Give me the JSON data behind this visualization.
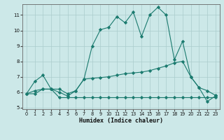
{
  "x": [
    0,
    1,
    2,
    3,
    4,
    5,
    6,
    7,
    8,
    9,
    10,
    11,
    12,
    13,
    14,
    15,
    16,
    17,
    18,
    19,
    20,
    21,
    22,
    23
  ],
  "line_top": [
    5.9,
    6.7,
    7.1,
    6.2,
    6.0,
    5.75,
    6.1,
    6.85,
    9.0,
    10.05,
    10.2,
    10.9,
    10.5,
    11.2,
    9.6,
    11.0,
    11.5,
    11.0,
    8.1,
    9.3,
    7.0,
    6.3,
    5.4,
    5.75
  ],
  "line_mid": [
    5.9,
    6.1,
    6.2,
    6.2,
    6.2,
    5.9,
    6.1,
    6.85,
    6.9,
    6.95,
    7.0,
    7.1,
    7.2,
    7.25,
    7.3,
    7.4,
    7.55,
    7.7,
    7.9,
    8.0,
    7.0,
    6.3,
    6.1,
    5.8
  ],
  "line_bot": [
    5.9,
    5.9,
    6.2,
    6.2,
    5.65,
    5.65,
    5.65,
    5.65,
    5.65,
    5.65,
    5.65,
    5.65,
    5.65,
    5.65,
    5.65,
    5.65,
    5.65,
    5.65,
    5.65,
    5.65,
    5.65,
    5.65,
    5.65,
    5.65
  ],
  "bg_color": "#cce8e8",
  "grid_color": "#aacccc",
  "line_color": "#1a7a6e",
  "xlabel": "Humidex (Indice chaleur)",
  "ylim": [
    4.9,
    11.7
  ],
  "xlim": [
    -0.5,
    23.5
  ],
  "yticks": [
    5,
    6,
    7,
    8,
    9,
    10,
    11
  ],
  "xticks": [
    0,
    1,
    2,
    3,
    4,
    5,
    6,
    7,
    8,
    9,
    10,
    11,
    12,
    13,
    14,
    15,
    16,
    17,
    18,
    19,
    20,
    21,
    22,
    23
  ],
  "figsize": [
    3.2,
    2.0
  ],
  "dpi": 100
}
